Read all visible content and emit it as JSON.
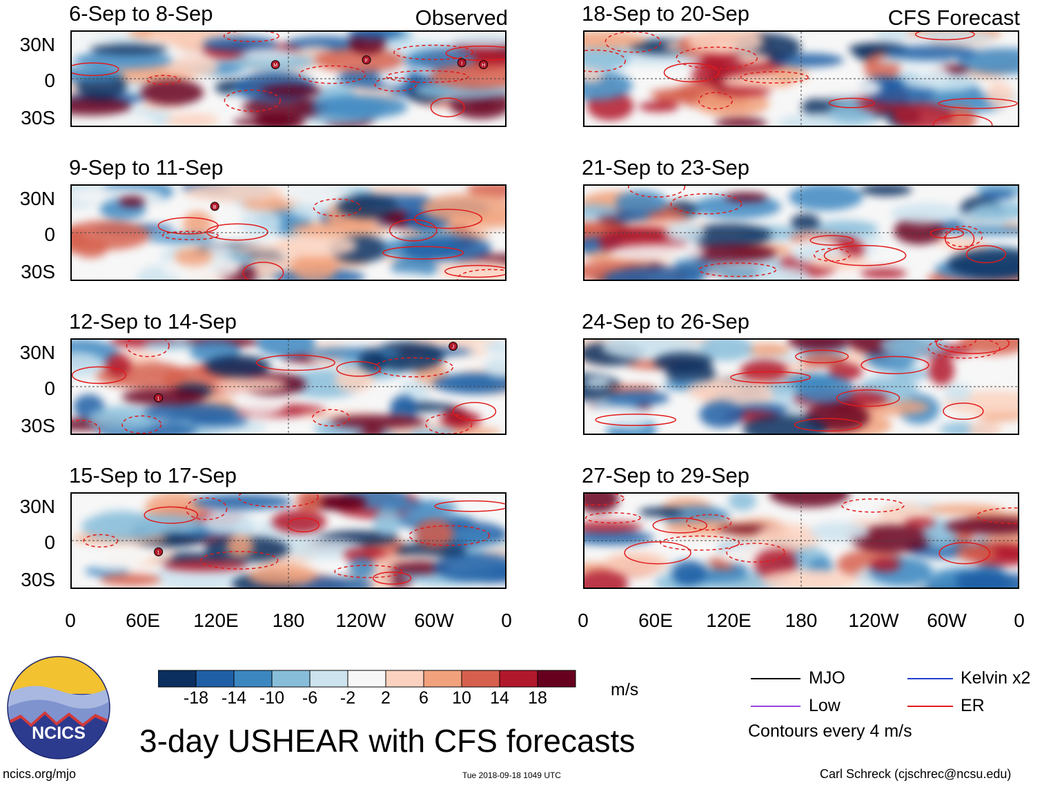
{
  "chart_data": {
    "type": "heatmap",
    "title": "3-day USHEAR with CFS forecasts",
    "variable": "USHEAR",
    "units": "m/s",
    "column_headers": {
      "observed": "Observed",
      "forecast": "CFS Forecast"
    },
    "panels_observed": [
      {
        "period": "6-Sep to 8-Sep",
        "storms": [
          "M",
          "F",
          "I",
          "H"
        ]
      },
      {
        "period": "9-Sep to 11-Sep",
        "storms": [
          "B"
        ]
      },
      {
        "period": "12-Sep to 14-Sep",
        "storms": [
          "1",
          "J"
        ]
      },
      {
        "period": "15-Sep to 17-Sep",
        "storms": [
          "1"
        ]
      }
    ],
    "panels_forecast": [
      {
        "period": "18-Sep to 20-Sep"
      },
      {
        "period": "21-Sep to 23-Sep"
      },
      {
        "period": "24-Sep to 26-Sep"
      },
      {
        "period": "27-Sep to 29-Sep"
      }
    ],
    "lat_ticks": [
      "30N",
      "0",
      "30S"
    ],
    "lon_ticks": [
      "0",
      "60E",
      "120E",
      "180",
      "120W",
      "60W",
      "0"
    ],
    "colorbar": {
      "ticks": [
        "-18",
        "-14",
        "-10",
        "-6",
        "-2",
        "2",
        "6",
        "10",
        "14",
        "18"
      ],
      "colors": [
        "#0b2f5f",
        "#1f5fa6",
        "#3d87c1",
        "#88bdda",
        "#cde3ee",
        "#f7f7f7",
        "#fbd2bf",
        "#f1a27d",
        "#d6604d",
        "#b2182b",
        "#67001f"
      ]
    },
    "contour_note": "Contours every 4 m/s",
    "legend": [
      {
        "label": "MJO",
        "color": "#000000"
      },
      {
        "label": "Kelvin x2",
        "color": "#1f3fd0"
      },
      {
        "label": "Low",
        "color": "#9b40e0"
      },
      {
        "label": "ER",
        "color": "#e01b1b"
      }
    ]
  },
  "footer": {
    "url": "ncics.org/mjo",
    "timestamp": "Tue 2018-09-18 1049 UTC",
    "credit": "Carl Schreck (cjschrec@ncsu.edu)"
  },
  "logo": {
    "text": "NCICS"
  }
}
